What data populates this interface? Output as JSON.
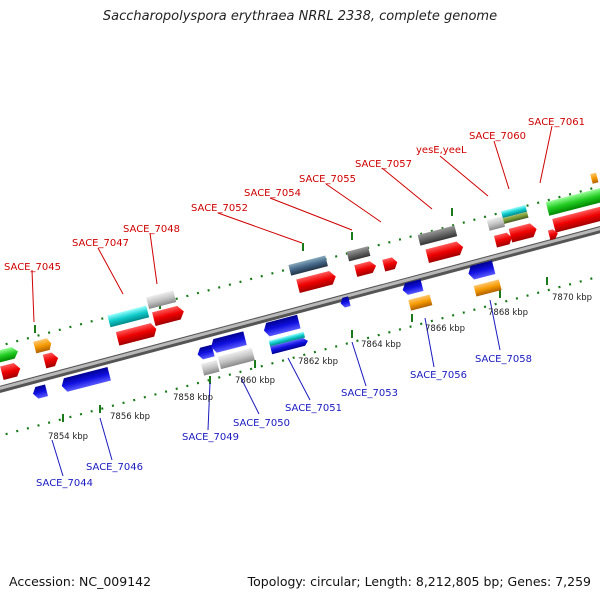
{
  "header": {
    "title": "Saccharopolyspora erythraea NRRL 2338, complete genome"
  },
  "footer": {
    "accession": "Accession: NC_009142",
    "topology": "Topology: circular; Length: 8,212,805 bp; Genes: 7,259"
  },
  "colors": {
    "backbone": "#888888",
    "top_label": "#d00000",
    "bottom_label": "#1a1ac0",
    "tick": "#1a7a1a"
  },
  "scale_labels": [
    "7854 kbp",
    "7856 kbp",
    "7858 kbp",
    "7860 kbp",
    "7862 kbp",
    "7864 kbp",
    "7866 kbp",
    "7868 kbp",
    "7870 kbp"
  ],
  "top_genes": [
    {
      "label": "SACE_7045"
    },
    {
      "label": "SACE_7047"
    },
    {
      "label": "SACE_7048"
    },
    {
      "label": "SACE_7052"
    },
    {
      "label": "SACE_7054"
    },
    {
      "label": "SACE_7055"
    },
    {
      "label": "SACE_7057"
    },
    {
      "label": "yesE,yeeL"
    },
    {
      "label": "SACE_7060"
    },
    {
      "label": "SACE_7061"
    }
  ],
  "bottom_genes": [
    {
      "label": "SACE_7044"
    },
    {
      "label": "SACE_7046"
    },
    {
      "label": "SACE_7049"
    },
    {
      "label": "SACE_7050"
    },
    {
      "label": "SACE_7051"
    },
    {
      "label": "SACE_7053"
    },
    {
      "label": "SACE_7056"
    },
    {
      "label": "SACE_7058"
    }
  ]
}
